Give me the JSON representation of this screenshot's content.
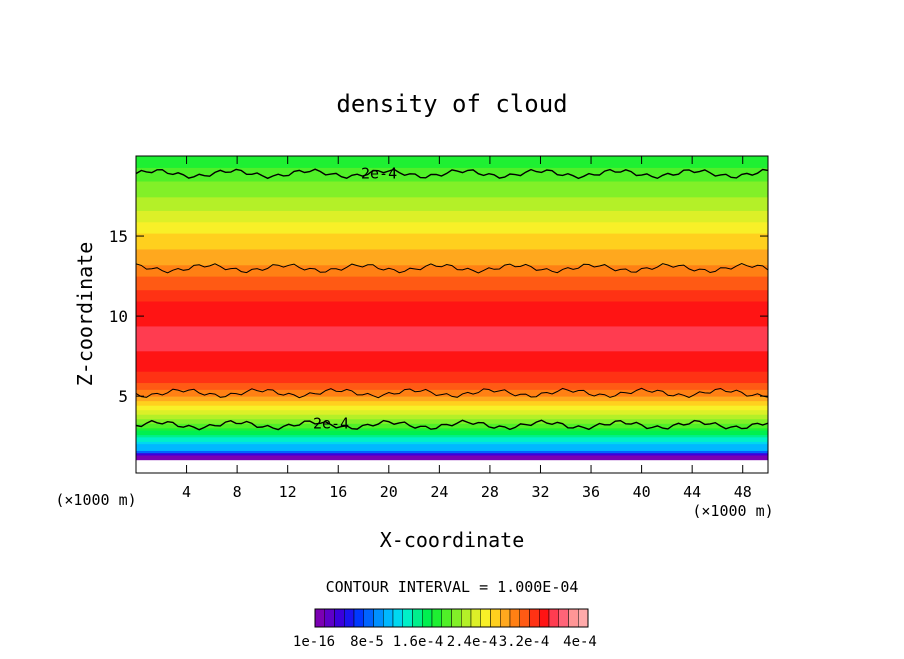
{
  "chart_data": {
    "type": "heatmap",
    "title": "density of cloud",
    "xlabel": "X-coordinate",
    "ylabel": "Z-coordinate",
    "x_unit_left": "(×1000 m)",
    "x_unit_right": "(×1000 m)",
    "xlim": [
      0,
      50
    ],
    "ylim": [
      0.2,
      20
    ],
    "x_ticks": [
      4,
      8,
      12,
      16,
      20,
      24,
      28,
      32,
      36,
      40,
      44,
      48
    ],
    "y_ticks": [
      5,
      10,
      15
    ],
    "contour_interval_text": "CONTOUR INTERVAL = 1.000E-04",
    "contour_labels": [
      {
        "text": "2e-4",
        "x": 17.8,
        "z": 18.9
      },
      {
        "text": "2e-4",
        "x": 14.0,
        "z": 3.3
      }
    ],
    "contour_lines_z": [
      18.9,
      13.0,
      5.2,
      3.2
    ],
    "colorbar": {
      "tick_labels": [
        "1e-16",
        "8e-5",
        "1.6e-4",
        "2.4e-4",
        "3.2e-4",
        "4e-4"
      ],
      "colors": [
        "#7b00b3",
        "#5e00c8",
        "#3b00dc",
        "#1a14f0",
        "#0038ff",
        "#0064ff",
        "#0090ff",
        "#00b8ff",
        "#00d8f0",
        "#00f0c8",
        "#00f08c",
        "#00f050",
        "#1ef032",
        "#50f028",
        "#82f028",
        "#b4f028",
        "#dcf028",
        "#f8f028",
        "#ffd01e",
        "#ffa81e",
        "#ff8014",
        "#ff5a14",
        "#ff3214",
        "#ff1414",
        "#ff3c50",
        "#ff6478",
        "#ff9696",
        "#ffaaaa"
      ]
    },
    "profile": [
      {
        "z": 0.2,
        "value": 0.0
      },
      {
        "z": 1.0,
        "value": 0.0
      },
      {
        "z": 1.3,
        "value": 0.0
      },
      {
        "z": 1.6,
        "value": 0.0001
      },
      {
        "z": 2.0,
        "value": 0.00012
      },
      {
        "z": 2.6,
        "value": 0.00016
      },
      {
        "z": 3.2,
        "value": 0.0002
      },
      {
        "z": 4.0,
        "value": 0.00024
      },
      {
        "z": 5.0,
        "value": 0.0003
      },
      {
        "z": 6.0,
        "value": 0.00033
      },
      {
        "z": 7.0,
        "value": 0.00035
      },
      {
        "z": 8.5,
        "value": 0.00036
      },
      {
        "z": 10.5,
        "value": 0.00035
      },
      {
        "z": 11.5,
        "value": 0.00033
      },
      {
        "z": 13.0,
        "value": 0.0003
      },
      {
        "z": 15.0,
        "value": 0.00027
      },
      {
        "z": 17.0,
        "value": 0.00023
      },
      {
        "z": 18.9,
        "value": 0.0002
      },
      {
        "z": 20.0,
        "value": 0.00018
      }
    ]
  }
}
